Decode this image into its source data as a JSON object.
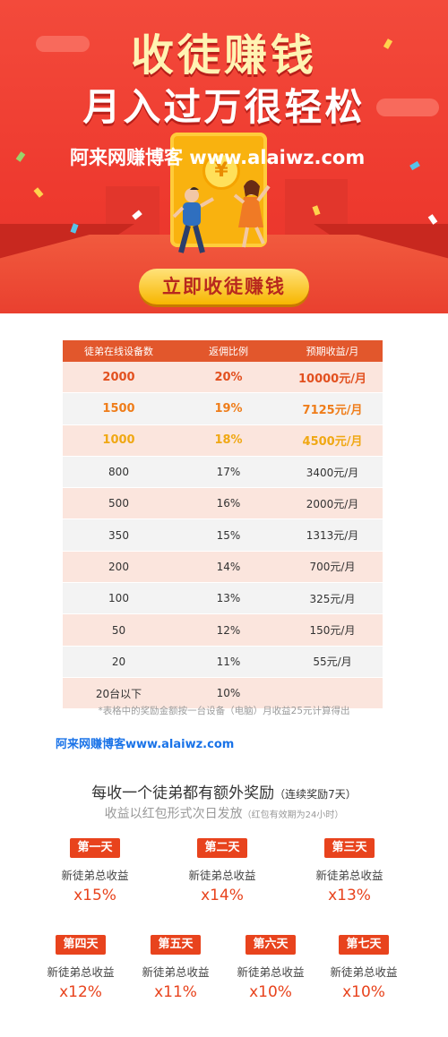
{
  "banner": {
    "title_line1": "收徒赚钱",
    "title_line2": "月入过万很轻松",
    "blog_text": "阿来网赚博客 www.alaiwz.com",
    "coin_symbol": "¥",
    "cta_label": "立即收徒赚钱",
    "colors": {
      "background": "#ee3a2f",
      "title": "#fff3b3",
      "cta": "#f7b600"
    }
  },
  "table": {
    "headers": [
      "徒弟在线设备数",
      "返佣比例",
      "预期收益/月"
    ],
    "rows": [
      {
        "devices": "2000",
        "ratio": "20%",
        "income": "10000元/月"
      },
      {
        "devices": "1500",
        "ratio": "19%",
        "income": "7125元/月"
      },
      {
        "devices": "1000",
        "ratio": "18%",
        "income": "4500元/月"
      },
      {
        "devices": "800",
        "ratio": "17%",
        "income": "3400元/月"
      },
      {
        "devices": "500",
        "ratio": "16%",
        "income": "2000元/月"
      },
      {
        "devices": "350",
        "ratio": "15%",
        "income": "1313元/月"
      },
      {
        "devices": "200",
        "ratio": "14%",
        "income": "700元/月"
      },
      {
        "devices": "100",
        "ratio": "13%",
        "income": "325元/月"
      },
      {
        "devices": "50",
        "ratio": "12%",
        "income": "150元/月"
      },
      {
        "devices": "20",
        "ratio": "11%",
        "income": "55元/月"
      },
      {
        "devices": "20台以下",
        "ratio": "10%",
        "income": ""
      }
    ],
    "note": "*表格中的奖励金额按一台设备（电脑）月收益25元计算得出"
  },
  "blog_link": "阿来网赚博客www.alaiwz.com",
  "rewards": {
    "title": "每收一个徒弟都有额外奖励",
    "title_small": "（连续奖励7天）",
    "subtitle": "收益以红包形式次日发放",
    "subtitle_small": "（红包有效期为24小时）",
    "days": [
      {
        "tag": "第一天",
        "label": "新徒弟总收益",
        "pct": "x15%"
      },
      {
        "tag": "第二天",
        "label": "新徒弟总收益",
        "pct": "x14%"
      },
      {
        "tag": "第三天",
        "label": "新徒弟总收益",
        "pct": "x13%"
      },
      {
        "tag": "第四天",
        "label": "新徒弟总收益",
        "pct": "x12%"
      },
      {
        "tag": "第五天",
        "label": "新徒弟总收益",
        "pct": "x11%"
      },
      {
        "tag": "第六天",
        "label": "新徒弟总收益",
        "pct": "x10%"
      },
      {
        "tag": "第七天",
        "label": "新徒弟总收益",
        "pct": "x10%"
      }
    ]
  }
}
